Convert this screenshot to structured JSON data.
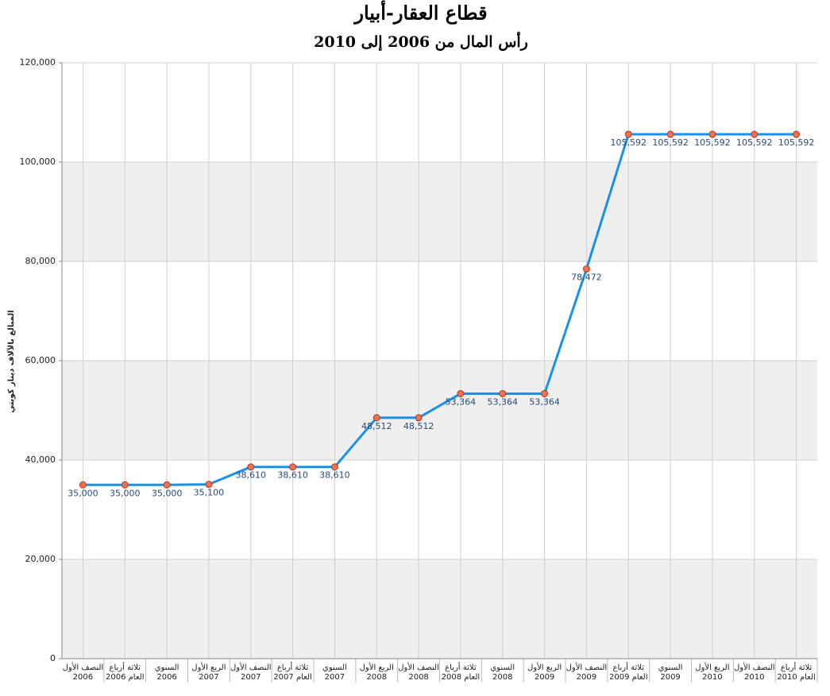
{
  "chart_data": {
    "type": "line",
    "title": "قطاع العقار-أبيار",
    "subtitle": "رأس المال من 2006 إلى 2010",
    "y_label": "المبالغ بالآلاف دينار كويتي",
    "categories": [
      "النصف الأول\n2006",
      "ثلاثة أرباع\nالعام 2006",
      "السنوي\n2006",
      "الربع الأول\n2007",
      "النصف الأول\n2007",
      "ثلاثة أرباع\nالعام 2007",
      "السنوي\n2007",
      "الربع الأول\n2008",
      "النصف الأول\n2008",
      "ثلاثة أرباع\nالعام 2008",
      "السنوي\n2008",
      "الربع الأول\n2009",
      "النصف الأول\n2009",
      "ثلاثة أرباع\nالعام 2009",
      "السنوي\n2009",
      "الربع الأول\n2010",
      "النصف الأول\n2010",
      "ثلاثة أرباع\nالعام 2010"
    ],
    "values": [
      35000,
      35000,
      35000,
      35100,
      38610,
      38610,
      38610,
      48512,
      48512,
      53364,
      53364,
      53364,
      78472,
      105592,
      105592,
      105592,
      105592,
      105592
    ],
    "value_labels": [
      "35,000",
      "35,000",
      "35,000",
      "35,100",
      "38,610",
      "38,610",
      "38,610",
      "48,512",
      "48,512",
      "53,364",
      "53,364",
      "53,364",
      "78,472",
      "105,592",
      "105,592",
      "105,592",
      "105,592",
      "105,592"
    ],
    "color": "#1a90e8",
    "marker_color": "#f07050",
    "ylim": [
      0,
      120000
    ],
    "yticks": [
      0,
      {
        "value": 20000,
        "label": "20,000"
      },
      {
        "value": 40000,
        "label": "40,000"
      },
      {
        "value": 60000,
        "label": "60,000"
      },
      {
        "value": 80000,
        "label": "80,000"
      },
      {
        "value": 100000,
        "label": "100,000"
      },
      {
        "value": 120000,
        "label": "120,000"
      }
    ],
    "grid": true
  }
}
